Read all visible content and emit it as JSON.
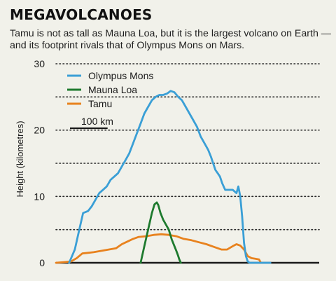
{
  "title": "MEGAVOLCANOES",
  "subtitle": "Tamu is not as tall as Mauna Loa, but it is the largest volcano on Earth — and its footprint rivals that of Olympus Mons on Mars.",
  "colors": {
    "background": "#f1f1ea",
    "olympus": "#3a9fd6",
    "mauna": "#1e7a2e",
    "tamu": "#e8821e"
  },
  "chart_data": {
    "type": "line",
    "ylabel": "Height (kilometres)",
    "xlabel": "",
    "ylim": [
      0,
      30
    ],
    "xlim": [
      0,
      700
    ],
    "yticks": [
      "0",
      "10",
      "20",
      "30"
    ],
    "grid": "dotted-horizontal",
    "legend_position": "top-left",
    "scale_bar": {
      "label": "100 km",
      "length_km": 100
    },
    "series": [
      {
        "name": "Olympus Mons",
        "color": "#3a9fd6",
        "x": [
          35,
          50,
          60,
          72,
          85,
          95,
          105,
          115,
          125,
          135,
          145,
          155,
          165,
          175,
          185,
          195,
          205,
          215,
          225,
          235,
          245,
          255,
          265,
          275,
          285,
          295,
          305,
          315,
          325,
          335,
          345,
          355,
          365,
          375,
          385,
          395,
          405,
          412,
          418,
          424,
          430,
          436,
          442,
          450,
          460,
          470,
          480,
          485,
          490,
          495,
          500,
          505,
          510,
          515,
          520,
          525,
          532,
          540,
          550,
          560,
          570
        ],
        "y": [
          0,
          2,
          4.5,
          7.5,
          7.8,
          8.5,
          9.5,
          10.5,
          11,
          11.5,
          12.5,
          13,
          13.5,
          14.5,
          15.5,
          16.5,
          18,
          19.5,
          21,
          22.5,
          23.5,
          24.5,
          25,
          25.3,
          25.3,
          25.5,
          25.9,
          25.7,
          25,
          24.5,
          23.5,
          22.5,
          21.5,
          20.5,
          19,
          18,
          17,
          16,
          15,
          14,
          13.5,
          13,
          12,
          11,
          11,
          11,
          10.5,
          11.5,
          10,
          7,
          3,
          1,
          0.2,
          0,
          0,
          0,
          0,
          0,
          0,
          0,
          0
        ]
      },
      {
        "name": "Mauna Loa",
        "color": "#1e7a2e",
        "x": [
          225,
          235,
          245,
          255,
          262,
          268,
          272,
          278,
          285,
          292,
          300,
          308,
          315,
          320,
          324,
          328,
          332
        ],
        "y": [
          0,
          2.5,
          5,
          7.5,
          8.8,
          9.1,
          8.7,
          7.5,
          6.5,
          5.8,
          5,
          3.5,
          2.5,
          1.8,
          1.2,
          0.5,
          0
        ]
      },
      {
        "name": "Tamu",
        "color": "#e8821e",
        "x": [
          0,
          20,
          40,
          55,
          70,
          85,
          100,
          120,
          140,
          160,
          175,
          190,
          205,
          220,
          240,
          260,
          280,
          300,
          320,
          340,
          360,
          380,
          400,
          420,
          440,
          455,
          470,
          480,
          490,
          500,
          510,
          520,
          530,
          540,
          545
        ],
        "y": [
          0,
          0.1,
          0.2,
          0.7,
          1.4,
          1.5,
          1.6,
          1.8,
          2.0,
          2.2,
          2.8,
          3.2,
          3.6,
          3.9,
          4.0,
          4.2,
          4.3,
          4.2,
          4.0,
          3.6,
          3.4,
          3.1,
          2.8,
          2.4,
          2.0,
          2.0,
          2.5,
          2.8,
          2.6,
          2.0,
          1.0,
          0.7,
          0.6,
          0.5,
          0
        ]
      }
    ]
  }
}
